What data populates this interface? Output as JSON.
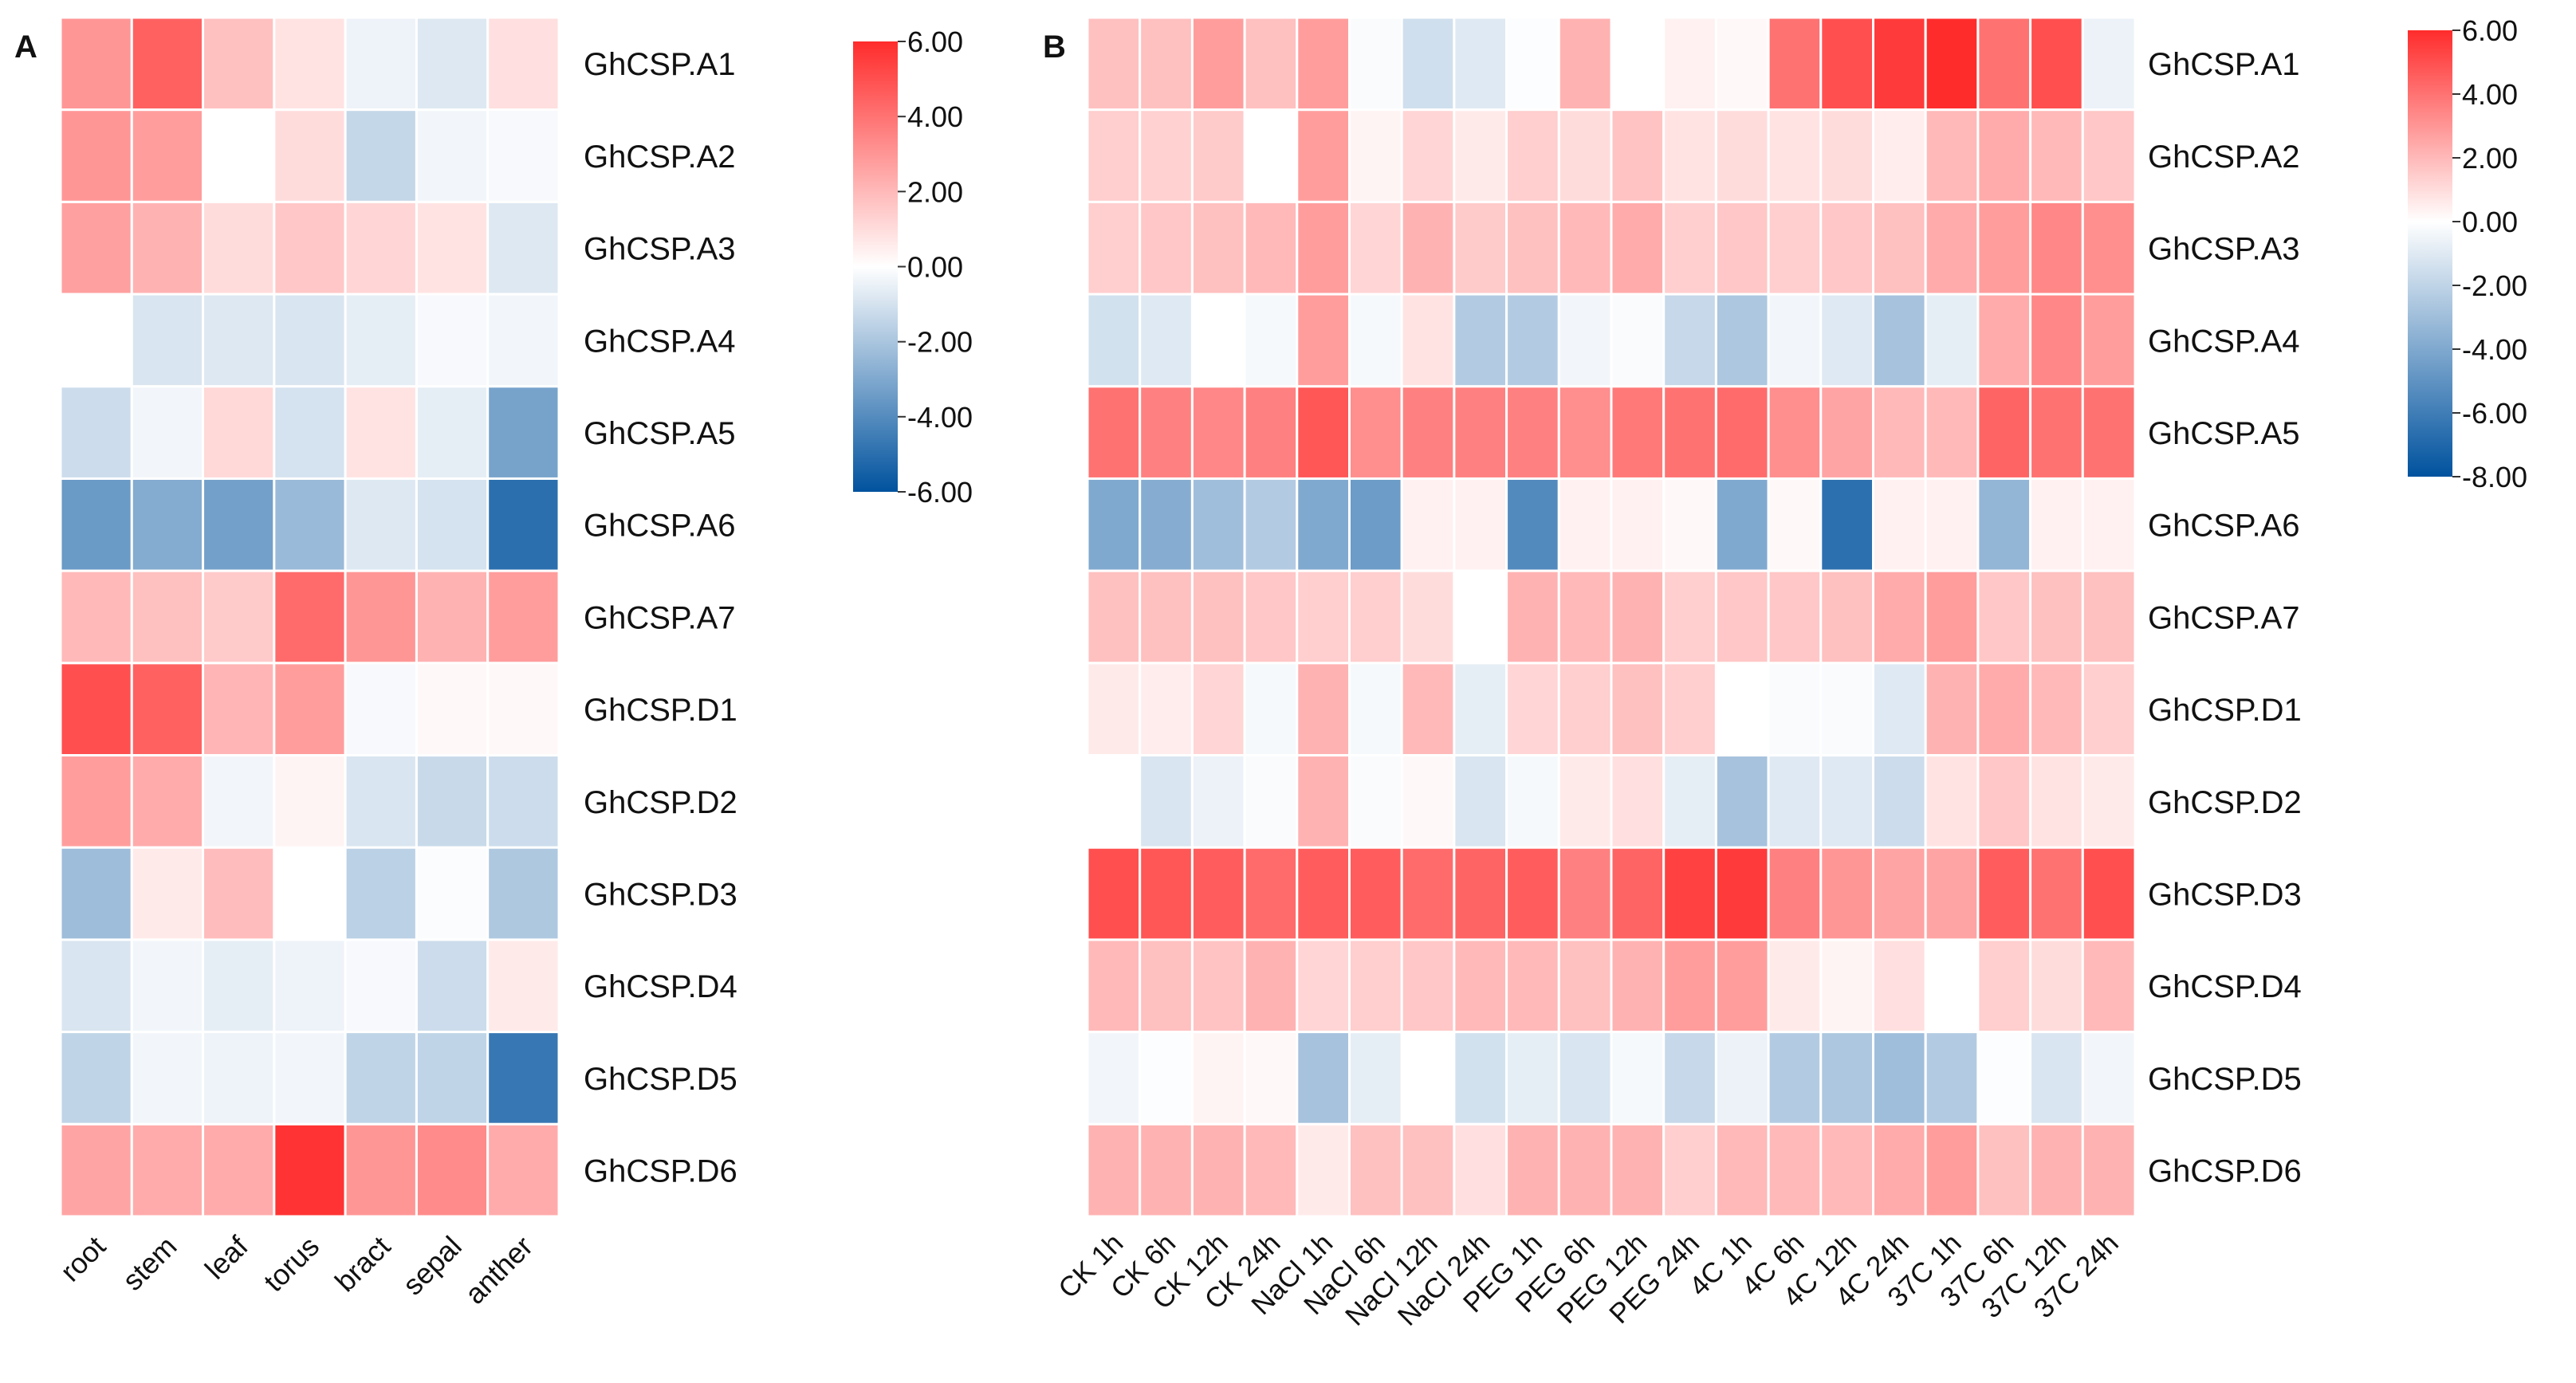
{
  "colors": {
    "low": "#00529e",
    "mid": "#ffffff",
    "high": "#ff2c2c"
  },
  "chart_data": [
    {
      "type": "heatmap",
      "panel_label": "A",
      "title": "",
      "xlabel": "",
      "ylabel": "",
      "rows": [
        "GhCSP.A1",
        "GhCSP.A2",
        "GhCSP.A3",
        "GhCSP.A4",
        "GhCSP.A5",
        "GhCSP.A6",
        "GhCSP.A7",
        "GhCSP.D1",
        "GhCSP.D2",
        "GhCSP.D3",
        "GhCSP.D4",
        "GhCSP.D5",
        "GhCSP.D6"
      ],
      "columns": [
        "root",
        "stem",
        "leaf",
        "torus",
        "bract",
        "sepal",
        "anther"
      ],
      "values": [
        [
          3.0,
          4.5,
          1.8,
          0.8,
          -0.4,
          -0.8,
          0.9
        ],
        [
          3.0,
          2.8,
          0.0,
          1.0,
          -1.4,
          -0.3,
          -0.2
        ],
        [
          2.7,
          2.2,
          1.0,
          1.6,
          1.2,
          0.8,
          -0.8
        ],
        [
          0.0,
          -0.9,
          -0.8,
          -0.9,
          -0.6,
          -0.2,
          -0.3
        ],
        [
          -1.2,
          -0.3,
          1.1,
          -1.0,
          0.8,
          -0.6,
          -3.2
        ],
        [
          -3.5,
          -2.9,
          -3.3,
          -2.4,
          -0.8,
          -1.0,
          -5.0
        ],
        [
          2.0,
          1.8,
          1.5,
          4.2,
          3.0,
          2.2,
          2.8
        ],
        [
          5.0,
          4.5,
          2.1,
          2.8,
          -0.2,
          0.2,
          0.2
        ],
        [
          2.8,
          2.4,
          -0.3,
          0.3,
          -0.9,
          -1.3,
          -1.2
        ],
        [
          -2.3,
          0.6,
          1.9,
          0.0,
          -1.6,
          -0.1,
          -1.9
        ],
        [
          -0.9,
          -0.3,
          -0.6,
          -0.4,
          -0.2,
          -1.2,
          0.6
        ],
        [
          -1.5,
          -0.3,
          -0.4,
          -0.3,
          -1.5,
          -1.5,
          -4.7
        ],
        [
          2.6,
          2.4,
          2.4,
          5.8,
          3.0,
          3.3,
          2.4
        ]
      ],
      "colorbar": {
        "min": -6,
        "max": 6,
        "ticks": [
          "6.00",
          "4.00",
          "2.00",
          "0.00",
          "-2.00",
          "-4.00",
          "-6.00"
        ]
      }
    },
    {
      "type": "heatmap",
      "panel_label": "B",
      "title": "",
      "xlabel": "",
      "ylabel": "",
      "rows": [
        "GhCSP.A1",
        "GhCSP.A2",
        "GhCSP.A3",
        "GhCSP.A4",
        "GhCSP.A5",
        "GhCSP.A6",
        "GhCSP.A7",
        "GhCSP.D1",
        "GhCSP.D2",
        "GhCSP.D3",
        "GhCSP.D4",
        "GhCSP.D5",
        "GhCSP.D6"
      ],
      "columns": [
        "CK 1h",
        "CK 6h",
        "CK 12h",
        "CK 24h",
        "NaCl 1h",
        "NaCl 6h",
        "NaCl 12h",
        "NaCl 24h",
        "PEG 1h",
        "PEG 6h",
        "PEG 12h",
        "PEG 24h",
        "4C 1h",
        "4C 6h",
        "4C 12h",
        "4C 24h",
        "37C 1h",
        "37C 6h",
        "37C 12h",
        "37C 24h"
      ],
      "values": [
        [
          1.8,
          1.8,
          2.8,
          1.8,
          2.8,
          -0.2,
          -1.5,
          -1.0,
          -0.1,
          2.2,
          0.0,
          0.4,
          0.2,
          4.0,
          5.0,
          5.6,
          6.0,
          4.0,
          5.0,
          -0.6
        ],
        [
          1.4,
          1.3,
          1.5,
          0.0,
          2.8,
          0.3,
          1.2,
          0.6,
          1.4,
          1.0,
          1.7,
          0.8,
          1.0,
          0.8,
          1.0,
          0.5,
          2.0,
          2.4,
          2.0,
          1.6
        ],
        [
          1.4,
          1.6,
          1.8,
          2.0,
          2.8,
          1.2,
          2.2,
          1.5,
          1.8,
          2.0,
          2.4,
          1.4,
          1.6,
          1.4,
          1.6,
          1.8,
          2.4,
          2.8,
          3.4,
          3.2
        ],
        [
          -1.4,
          -1.0,
          0.0,
          -0.3,
          2.8,
          -0.3,
          0.8,
          -2.4,
          -2.4,
          -0.4,
          -0.2,
          -1.8,
          -2.6,
          -0.4,
          -1.0,
          -2.8,
          -0.8,
          2.4,
          3.4,
          2.8
        ],
        [
          4.0,
          3.6,
          3.4,
          3.6,
          4.8,
          3.2,
          3.6,
          3.6,
          3.6,
          3.2,
          3.8,
          4.0,
          4.2,
          3.2,
          2.6,
          2.0,
          2.0,
          4.4,
          4.0,
          4.0
        ],
        [
          -4.0,
          -3.8,
          -3.0,
          -2.4,
          -4.0,
          -4.6,
          0.4,
          0.4,
          -5.4,
          0.4,
          0.4,
          0.2,
          -4.0,
          0.2,
          -6.6,
          0.4,
          0.4,
          -3.4,
          0.4,
          0.4
        ],
        [
          1.8,
          1.8,
          1.8,
          1.6,
          1.4,
          1.4,
          1.0,
          0.0,
          2.2,
          2.0,
          2.2,
          1.4,
          1.6,
          1.6,
          1.8,
          2.4,
          2.8,
          1.6,
          1.8,
          1.8
        ],
        [
          0.6,
          0.5,
          1.2,
          -0.3,
          2.2,
          -0.3,
          2.0,
          -0.8,
          1.2,
          1.4,
          1.8,
          1.4,
          0.0,
          -0.2,
          -0.2,
          -1.0,
          2.2,
          2.4,
          2.0,
          1.4
        ],
        [
          0.0,
          -1.2,
          -0.6,
          -0.2,
          2.2,
          -0.2,
          0.2,
          -1.2,
          -0.3,
          0.6,
          0.9,
          -0.8,
          -2.8,
          -1.0,
          -1.0,
          -1.6,
          0.8,
          1.6,
          0.8,
          0.6
        ],
        [
          5.0,
          4.8,
          4.6,
          4.2,
          4.6,
          4.6,
          4.2,
          4.4,
          4.6,
          3.6,
          4.4,
          5.4,
          5.6,
          3.6,
          3.0,
          2.6,
          2.6,
          4.6,
          4.0,
          5.0
        ],
        [
          2.0,
          1.8,
          1.7,
          2.2,
          1.2,
          1.4,
          1.6,
          2.0,
          2.0,
          1.8,
          2.2,
          2.8,
          2.8,
          0.6,
          0.3,
          0.9,
          0.0,
          1.4,
          1.0,
          2.0
        ],
        [
          -0.4,
          -0.1,
          0.3,
          0.2,
          -2.8,
          -0.8,
          0.0,
          -1.4,
          -0.8,
          -1.2,
          -0.3,
          -1.8,
          -0.6,
          -2.4,
          -2.6,
          -3.0,
          -2.4,
          -0.1,
          -1.2,
          -0.4
        ],
        [
          2.2,
          2.2,
          2.2,
          2.0,
          0.6,
          1.8,
          1.8,
          0.9,
          2.2,
          2.2,
          2.2,
          1.4,
          2.0,
          2.0,
          2.0,
          2.4,
          2.8,
          1.8,
          2.2,
          2.2
        ]
      ],
      "colorbar": {
        "min": -8,
        "max": 6,
        "ticks": [
          "6.00",
          "4.00",
          "2.00",
          "0.00",
          "-2.00",
          "-4.00",
          "-6.00",
          "-8.00"
        ]
      }
    }
  ]
}
